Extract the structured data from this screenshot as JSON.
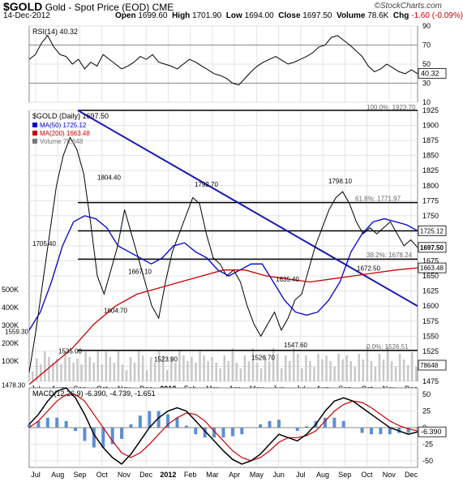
{
  "header": {
    "symbol": "$GOLD",
    "name": "Gold - Spot Price (EOD)",
    "exchange": "CME",
    "date": "14-Dec-2012",
    "brand": "©StockCharts.com",
    "open_label": "Open",
    "open": "1699.60",
    "high_label": "High",
    "high": "1701.90",
    "low_label": "Low",
    "low": "1694.00",
    "close_label": "Close",
    "close": "1697.50",
    "volume_label": "Volume",
    "volume": "78.6K",
    "chg_label": "Chg",
    "chg": "-1.60 (-0.09%)"
  },
  "chart_data": [
    {
      "panel": "rsi",
      "type": "line",
      "label": "RSI(14) 40.32",
      "ylim": [
        10,
        90
      ],
      "ticks": [
        10,
        30,
        50,
        70,
        90
      ],
      "reference_lines": [
        30,
        70
      ],
      "last_value": "40.32",
      "series": [
        {
          "values": [
            55,
            60,
            72,
            80,
            68,
            60,
            58,
            50,
            55,
            45,
            52,
            48,
            60,
            55,
            50,
            45,
            48,
            52,
            58,
            55,
            60,
            52,
            50,
            48,
            45,
            50,
            55,
            52,
            48,
            44,
            40,
            38,
            35,
            30,
            28,
            35,
            42,
            48,
            52,
            55,
            58,
            54,
            50,
            52,
            55,
            58,
            62,
            68,
            70,
            78,
            80,
            75,
            70,
            64,
            58,
            48,
            42,
            45,
            50,
            46,
            42,
            40,
            44,
            40
          ]
        }
      ]
    },
    {
      "panel": "price",
      "type": "line",
      "label": "$GOLD (Daily) 1697.50",
      "ylim": [
        1475,
        1925
      ],
      "ticks": [
        1475,
        1500,
        1525,
        1550,
        1575,
        1600,
        1625,
        1650,
        1675,
        1700,
        1725,
        1750,
        1775,
        1800,
        1825,
        1850,
        1875,
        1900,
        1925
      ],
      "x_labels": [
        "Jul",
        "Aug",
        "Sep",
        "Oct",
        "Nov",
        "Dec",
        "2012",
        "Feb",
        "Mar",
        "Apr",
        "May",
        "Jun",
        "Jul",
        "Aug",
        "Sep",
        "Oct",
        "Nov",
        "Dec"
      ],
      "legend": [
        {
          "name": "MA(50)",
          "value": "1725.12",
          "color": "#0000cc"
        },
        {
          "name": "MA(200)",
          "value": "1663.48",
          "color": "#cc0000"
        },
        {
          "name": "Volume",
          "value": "78,648",
          "color": "#777777"
        }
      ],
      "series": [
        {
          "name": "$GOLD",
          "color": "#000000",
          "values": [
            1490,
            1560,
            1640,
            1720,
            1800,
            1850,
            1880,
            1860,
            1820,
            1740,
            1650,
            1620,
            1660,
            1700,
            1760,
            1720,
            1680,
            1640,
            1600,
            1580,
            1640,
            1690,
            1720,
            1750,
            1780,
            1770,
            1720,
            1680,
            1670,
            1650,
            1660,
            1640,
            1600,
            1570,
            1550,
            1570,
            1590,
            1560,
            1580,
            1610,
            1620,
            1660,
            1700,
            1730,
            1760,
            1780,
            1790,
            1770,
            1740,
            1720,
            1730,
            1720,
            1730,
            1740,
            1720,
            1700,
            1710,
            1697.5
          ]
        },
        {
          "name": "MA(50)",
          "color": "#0000cc",
          "values": [
            1560,
            1590,
            1640,
            1700,
            1740,
            1750,
            1745,
            1730,
            1700,
            1690,
            1680,
            1670,
            1680,
            1700,
            1705,
            1690,
            1680,
            1660,
            1650,
            1660,
            1670,
            1670,
            1640,
            1610,
            1590,
            1585,
            1590,
            1610,
            1640,
            1690,
            1720,
            1740,
            1745,
            1740,
            1735,
            1725.12
          ]
        },
        {
          "name": "MA(200)",
          "color": "#cc0000",
          "values": [
            1470,
            1500,
            1530,
            1570,
            1600,
            1620,
            1630,
            1640,
            1650,
            1660,
            1660,
            1650,
            1645,
            1640,
            1645,
            1650,
            1655,
            1660,
            1663.48
          ]
        }
      ],
      "annotations": [
        {
          "label": "1804.40"
        },
        {
          "label": "1792.70"
        },
        {
          "label": "1798.10"
        },
        {
          "label": "1705.40"
        },
        {
          "label": "1667.10"
        },
        {
          "label": "1604.70"
        },
        {
          "label": "1635.40"
        },
        {
          "label": "1672.50"
        },
        {
          "label": "1559.30"
        },
        {
          "label": "1535.00"
        },
        {
          "label": "1523.90"
        },
        {
          "label": "1526.70"
        },
        {
          "label": "1547.60"
        },
        {
          "label": "1478.30"
        },
        {
          "label": "100.0%: 1923.70"
        },
        {
          "label": "61.8%: 1771.97"
        },
        {
          "label": "38.2%: 1678.24"
        },
        {
          "label": "0.0%: 1526.51"
        }
      ],
      "volume_axis": [
        "100K",
        "200K",
        "300K",
        "400K",
        "500K"
      ],
      "last_values": [
        "1725.12",
        "1697.50",
        "1663.48",
        "78648"
      ]
    },
    {
      "panel": "macd",
      "type": "line",
      "label": "MACD(12,26,9) -6.390, -4.739, -1.651",
      "ticks": [
        -50,
        -25,
        0,
        25,
        50
      ],
      "last_value": "-6.390",
      "series": [
        {
          "name": "MACD",
          "color": "#000000",
          "values": [
            5,
            20,
            40,
            55,
            60,
            45,
            20,
            -10,
            -30,
            -45,
            -55,
            -40,
            -20,
            0,
            15,
            25,
            30,
            25,
            10,
            -5,
            -20,
            -35,
            -48,
            -55,
            -50,
            -40,
            -25,
            -10,
            -15,
            -20,
            -10,
            5,
            25,
            40,
            45,
            40,
            30,
            20,
            10,
            0,
            -5,
            -10,
            -6.39
          ]
        },
        {
          "name": "Signal",
          "color": "#cc0000",
          "values": [
            0,
            10,
            25,
            40,
            50,
            50,
            40,
            20,
            0,
            -20,
            -38,
            -45,
            -38,
            -25,
            -10,
            5,
            15,
            22,
            20,
            10,
            -5,
            -20,
            -35,
            -45,
            -50,
            -45,
            -35,
            -22,
            -15,
            -15,
            -12,
            -5,
            10,
            25,
            35,
            40,
            38,
            30,
            20,
            10,
            3,
            -2,
            -4.739
          ]
        }
      ]
    }
  ]
}
